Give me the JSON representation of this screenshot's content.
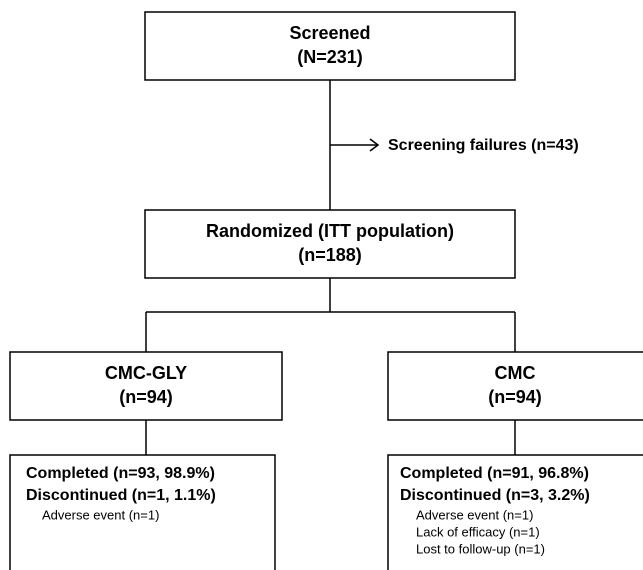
{
  "nodes": [
    {
      "title": "Screened",
      "count": "(N=231)"
    },
    {
      "title": "Randomized (ITT population)",
      "count": "(n=188)"
    },
    {
      "title": "CMC-GLY",
      "count": "(n=94)"
    },
    {
      "title": "CMC",
      "count": "(n=94)"
    }
  ],
  "side_note": "Screening failures (n=43)",
  "outcomes": [
    {
      "completed": "Completed (n=93, 98.9%)",
      "discontinued": "Discontinued (n=1, 1.1%)",
      "reasons": [
        "Adverse event (n=1)"
      ]
    },
    {
      "completed": "Completed (n=91, 96.8%)",
      "discontinued": "Discontinued (n=3, 3.2%)",
      "reasons": [
        "Adverse event (n=1)",
        "Lack of efficacy (n=1)",
        "Lost to follow-up (n=1)"
      ]
    }
  ]
}
